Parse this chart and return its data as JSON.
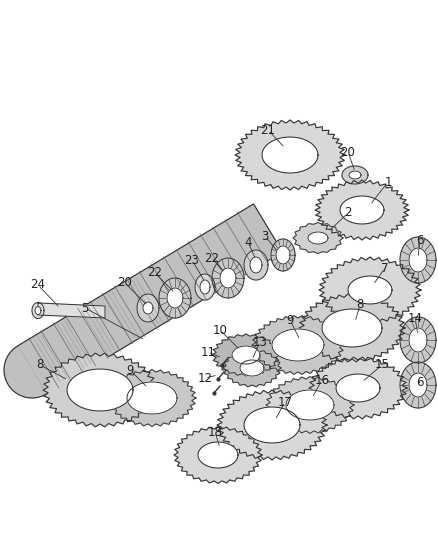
{
  "background_color": "#ffffff",
  "line_color": "#333333",
  "label_color": "#222222",
  "label_fontsize": 8.5,
  "gear_gray": "#d8d8d8",
  "gear_dark": "#888888",
  "gear_edge": "#333333",
  "shaft_gray": "#c8c8c8",
  "figsize": [
    4.38,
    5.33
  ],
  "dpi": 100
}
